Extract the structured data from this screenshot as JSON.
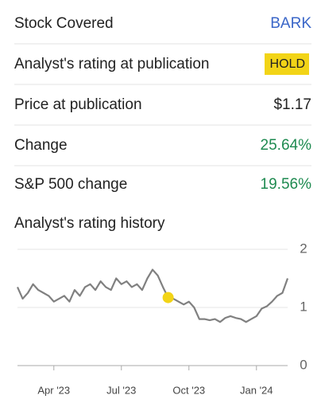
{
  "rows": [
    {
      "label": "Stock Covered",
      "value": "BARK",
      "color": "#3a66c8"
    },
    {
      "label": "Analyst's rating at publication",
      "value": "HOLD",
      "color": "#222222",
      "badge": "#f2d417"
    },
    {
      "label": "Price at publication",
      "value": "$1.17",
      "color": "#222222"
    },
    {
      "label": "Change",
      "value": "25.64%",
      "color": "#1e8a50"
    },
    {
      "label": "S&P 500 change",
      "value": "19.56%",
      "color": "#1e8a50"
    }
  ],
  "chart_data": {
    "type": "line",
    "title": "Analyst's rating history",
    "values": [
      1.35,
      1.15,
      1.25,
      1.4,
      1.3,
      1.25,
      1.2,
      1.1,
      1.15,
      1.2,
      1.1,
      1.3,
      1.2,
      1.35,
      1.4,
      1.3,
      1.45,
      1.35,
      1.3,
      1.5,
      1.4,
      1.45,
      1.35,
      1.4,
      1.3,
      1.5,
      1.65,
      1.55,
      1.35,
      1.17,
      1.15,
      1.1,
      1.05,
      1.1,
      1.0,
      0.8,
      0.8,
      0.78,
      0.8,
      0.75,
      0.82,
      0.85,
      0.82,
      0.8,
      0.75,
      0.8,
      0.85,
      0.98,
      1.02,
      1.1,
      1.2,
      1.25,
      1.5
    ],
    "color": "#808080",
    "marker": {
      "x": 29,
      "value": 1.17,
      "color": "#f2d417"
    },
    "xlim": [
      0,
      52
    ],
    "xticks": [
      {
        "value": 7,
        "label": "Apr '23"
      },
      {
        "value": 20,
        "label": "Jul '23"
      },
      {
        "value": 33,
        "label": "Oct '23"
      },
      {
        "value": 46,
        "label": "Jan '24"
      }
    ],
    "ylim": [
      0,
      2
    ],
    "yticks": [
      0,
      1,
      2
    ],
    "grid": true
  }
}
